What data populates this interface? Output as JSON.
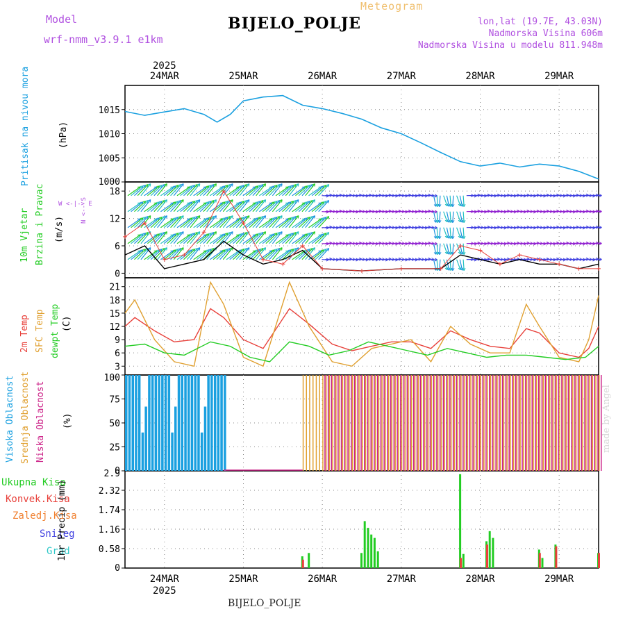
{
  "header": {
    "model_label": "Model",
    "model_name": "wrf-nmm_v3.9.1  e1km",
    "title": "BIJELO_POLJE",
    "product": "Meteogram",
    "lonlat": "lon,lat (19.7E, 43.03N)",
    "elevation": "Nadmorska Visina 606m",
    "model_elevation": "Nadmorska Visina u modelu 811.948m",
    "footer_station": "BIJELO_POLJE",
    "watermark": "made by Angel"
  },
  "colors": {
    "pressure": "#1aa0e0",
    "temp2m": "#e8403a",
    "sfc_temp": "#e0a030",
    "dewpoint": "#22cc22",
    "high_cloud": "#1aa0e0",
    "mid_cloud": "#e0a030",
    "low_cloud": "#cc2288",
    "total_precip": "#22cc22",
    "conv_precip": "#e8403a",
    "wind_speed": "#000000",
    "wind_gust": "#e8403a",
    "model_label": "#b050e0",
    "meteogram_label": "#f0c070"
  },
  "time_axis": {
    "year_label": "2025",
    "days": [
      "24MAR",
      "25MAR",
      "26MAR",
      "27MAR",
      "28MAR",
      "29MAR"
    ],
    "start": "2025-03-23T12",
    "end": "2025-03-29T12"
  },
  "panel_labels": {
    "pressure": {
      "name": "Pritisak na nivou mora",
      "unit": "(hPa)"
    },
    "wind": {
      "name1": "10m Vjetar",
      "name2": "Brzina i Pravac",
      "unit": "(m/s)",
      "compass_ns": "N <-- S",
      "compass_we": "W <-|-> E"
    },
    "temp": {
      "t2m": "2m Temp",
      "sfc": "SFC Temp",
      "dew": "dewpt Temp",
      "unit": "(C)"
    },
    "cloud": {
      "high": "Visoka Oblacnost",
      "mid": "Srednja Oblacnost",
      "low": "Niska Oblacnost",
      "unit": "(%)"
    },
    "precip": {
      "total": "Ukupna Kisa",
      "conv": "Konvek.Kisa",
      "frozen": "Zaledj.Kisa",
      "snow": "Snijeg",
      "hail": "Grad",
      "unit": "1hr Precip (mm)"
    }
  },
  "chart_data": [
    {
      "type": "line",
      "panel": "pressure",
      "ylabel": "(hPa)",
      "ylim": [
        1000,
        1020
      ],
      "yticks": [
        "1000",
        "1005",
        "1010",
        "1015"
      ],
      "grid": true,
      "series": [
        {
          "name": "Pritisak na nivou mora",
          "x": [
            "2025-03-23T12",
            "2025-03-23T18",
            "2025-03-24T00",
            "2025-03-24T06",
            "2025-03-24T12",
            "2025-03-24T16",
            "2025-03-24T20",
            "2025-03-25T00",
            "2025-03-25T06",
            "2025-03-25T12",
            "2025-03-25T18",
            "2025-03-26T00",
            "2025-03-26T06",
            "2025-03-26T12",
            "2025-03-26T18",
            "2025-03-27T00",
            "2025-03-27T06",
            "2025-03-27T12",
            "2025-03-27T18",
            "2025-03-28T00",
            "2025-03-28T06",
            "2025-03-28T12",
            "2025-03-28T18",
            "2025-03-29T00",
            "2025-03-29T06",
            "2025-03-29T12"
          ],
          "values": [
            1014.6,
            1013.8,
            1014.5,
            1015.2,
            1014.0,
            1012.4,
            1014.0,
            1016.8,
            1017.6,
            1017.9,
            1015.9,
            1015.2,
            1014.2,
            1013.0,
            1011.2,
            1010.0,
            1008.1,
            1006.1,
            1004.2,
            1003.3,
            1003.9,
            1003.1,
            1003.7,
            1003.3,
            1002.2,
            1000.6
          ]
        }
      ]
    },
    {
      "type": "line",
      "panel": "wind",
      "ylabel": "(m/s)",
      "ylim": [
        -1,
        20
      ],
      "yticks": [
        "0",
        "6",
        "12",
        "18"
      ],
      "grid": true,
      "series": [
        {
          "name": "wind speed",
          "x": [
            "2025-03-23T12",
            "2025-03-23T18",
            "2025-03-24T00",
            "2025-03-24T06",
            "2025-03-24T12",
            "2025-03-24T18",
            "2025-03-25T00",
            "2025-03-25T06",
            "2025-03-25T12",
            "2025-03-25T18",
            "2025-03-26T00",
            "2025-03-26T12",
            "2025-03-27T00",
            "2025-03-27T12",
            "2025-03-27T18",
            "2025-03-28T00",
            "2025-03-28T06",
            "2025-03-28T12",
            "2025-03-28T18",
            "2025-03-29T00",
            "2025-03-29T06",
            "2025-03-29T12"
          ],
          "values": [
            4,
            6,
            1,
            2,
            3,
            7,
            4,
            2,
            3,
            5,
            1,
            0.5,
            1,
            1,
            4,
            3,
            2,
            3,
            2,
            2,
            1,
            2
          ]
        },
        {
          "name": "wind gust",
          "x": [
            "2025-03-23T12",
            "2025-03-23T18",
            "2025-03-24T00",
            "2025-03-24T06",
            "2025-03-24T12",
            "2025-03-24T18",
            "2025-03-25T00",
            "2025-03-25T06",
            "2025-03-25T12",
            "2025-03-25T18",
            "2025-03-26T00",
            "2025-03-26T12",
            "2025-03-27T00",
            "2025-03-27T12",
            "2025-03-27T18",
            "2025-03-28T00",
            "2025-03-28T06",
            "2025-03-28T12",
            "2025-03-28T18",
            "2025-03-29T00",
            "2025-03-29T06",
            "2025-03-29T12"
          ],
          "values": [
            8,
            11,
            3,
            4,
            9,
            18,
            11,
            3,
            2,
            6,
            1,
            0.5,
            1,
            1,
            6,
            5,
            2,
            4,
            3,
            2,
            1,
            1
          ]
        }
      ]
    },
    {
      "type": "line",
      "panel": "temperature",
      "ylabel": "(C)",
      "ylim": [
        1,
        23
      ],
      "yticks": [
        "3",
        "6",
        "9",
        "12",
        "15",
        "18",
        "21"
      ],
      "grid": true,
      "series": [
        {
          "name": "2m Temp",
          "x": [
            "2025-03-23T12",
            "2025-03-23T15",
            "2025-03-23T21",
            "2025-03-24T03",
            "2025-03-24T09",
            "2025-03-24T14",
            "2025-03-24T18",
            "2025-03-25T00",
            "2025-03-25T06",
            "2025-03-25T14",
            "2025-03-25T20",
            "2025-03-26T03",
            "2025-03-26T09",
            "2025-03-26T15",
            "2025-03-26T21",
            "2025-03-27T03",
            "2025-03-27T09",
            "2025-03-27T15",
            "2025-03-27T21",
            "2025-03-28T03",
            "2025-03-28T09",
            "2025-03-28T14",
            "2025-03-28T18",
            "2025-03-29T00",
            "2025-03-29T06",
            "2025-03-29T09",
            "2025-03-29T12"
          ],
          "values": [
            12,
            14,
            11,
            8.5,
            9,
            16,
            14,
            9,
            7,
            16,
            12.5,
            8,
            6.5,
            7.5,
            8.5,
            8.5,
            7,
            11,
            9,
            7.5,
            7,
            11.5,
            10.5,
            6,
            5,
            7,
            12
          ]
        },
        {
          "name": "SFC Temp",
          "x": [
            "2025-03-23T12",
            "2025-03-23T15",
            "2025-03-23T21",
            "2025-03-24T03",
            "2025-03-24T09",
            "2025-03-24T14",
            "2025-03-24T18",
            "2025-03-25T00",
            "2025-03-25T06",
            "2025-03-25T14",
            "2025-03-25T20",
            "2025-03-26T03",
            "2025-03-26T09",
            "2025-03-26T15",
            "2025-03-26T21",
            "2025-03-27T03",
            "2025-03-27T09",
            "2025-03-27T15",
            "2025-03-27T21",
            "2025-03-28T03",
            "2025-03-28T09",
            "2025-03-28T14",
            "2025-03-28T18",
            "2025-03-29T00",
            "2025-03-29T06",
            "2025-03-29T09",
            "2025-03-29T12"
          ],
          "values": [
            15,
            18,
            9,
            4,
            3,
            22,
            17,
            5,
            3,
            22,
            12,
            4,
            3,
            7,
            8,
            9,
            4,
            12,
            8,
            6,
            6,
            17,
            12,
            5,
            4,
            9,
            19
          ]
        },
        {
          "name": "dewpt Temp",
          "x": [
            "2025-03-23T12",
            "2025-03-23T18",
            "2025-03-24T00",
            "2025-03-24T06",
            "2025-03-24T14",
            "2025-03-24T20",
            "2025-03-25T02",
            "2025-03-25T08",
            "2025-03-25T14",
            "2025-03-25T20",
            "2025-03-26T02",
            "2025-03-26T08",
            "2025-03-26T14",
            "2025-03-26T20",
            "2025-03-27T02",
            "2025-03-27T08",
            "2025-03-27T14",
            "2025-03-27T20",
            "2025-03-28T02",
            "2025-03-28T08",
            "2025-03-28T14",
            "2025-03-28T20",
            "2025-03-29T02",
            "2025-03-29T08",
            "2025-03-29T12"
          ],
          "values": [
            7.5,
            8,
            6,
            5.5,
            8.5,
            7.5,
            5,
            4,
            8.5,
            7.5,
            5.5,
            6.5,
            8.5,
            7.5,
            6.5,
            5.5,
            7,
            6,
            5,
            5.5,
            5.5,
            5,
            4.5,
            5,
            7.5
          ]
        }
      ]
    },
    {
      "type": "bar",
      "panel": "cloud",
      "ylabel": "(%)",
      "ylim": [
        0,
        100
      ],
      "yticks": [
        "0",
        "25",
        "50",
        "75",
        "100"
      ],
      "grid": true,
      "series": [
        {
          "name": "Visoka Oblacnost",
          "x_from": "2025-03-23T12",
          "x_to": "2025-03-24T18",
          "level": 100,
          "note_values": [
            100,
            100,
            100,
            100,
            100,
            40,
            67,
            100,
            100
          ]
        },
        {
          "name": "Srednja Oblacnost",
          "x_from": "2025-03-25T18",
          "x_to": "2025-03-29T12",
          "level": 100
        },
        {
          "name": "Niska Oblacnost",
          "x_from": "2025-03-26T00",
          "x_to": "2025-03-29T12",
          "level": 100
        }
      ]
    },
    {
      "type": "bar",
      "panel": "precip",
      "ylabel": "1hr Precip (mm)",
      "ylim": [
        0,
        2.9
      ],
      "yticks": [
        "0",
        "0.58",
        "1.16",
        "1.74",
        "2.32",
        "2.9"
      ],
      "grid": true,
      "series": [
        {
          "name": "Ukupna Kisa",
          "x": [
            "2025-03-25T18",
            "2025-03-25T20",
            "2025-03-26T12",
            "2025-03-26T13",
            "2025-03-26T14",
            "2025-03-26T15",
            "2025-03-26T16",
            "2025-03-26T17",
            "2025-03-27T18",
            "2025-03-27T19",
            "2025-03-28T02",
            "2025-03-28T03",
            "2025-03-28T04",
            "2025-03-28T18",
            "2025-03-28T19",
            "2025-03-28T23",
            "2025-03-29T12"
          ],
          "values": [
            0.35,
            0.45,
            0.45,
            1.4,
            1.2,
            1.0,
            0.9,
            0.5,
            2.8,
            0.42,
            0.8,
            1.1,
            0.9,
            0.55,
            0.3,
            0.7,
            0.45
          ]
        },
        {
          "name": "Konvek.Kisa",
          "x": [
            "2025-03-25T18",
            "2025-03-27T18",
            "2025-03-28T02",
            "2025-03-28T18",
            "2025-03-28T23",
            "2025-03-29T12"
          ],
          "values": [
            0.25,
            0.3,
            0.7,
            0.45,
            0.65,
            0.45
          ]
        }
      ]
    }
  ]
}
